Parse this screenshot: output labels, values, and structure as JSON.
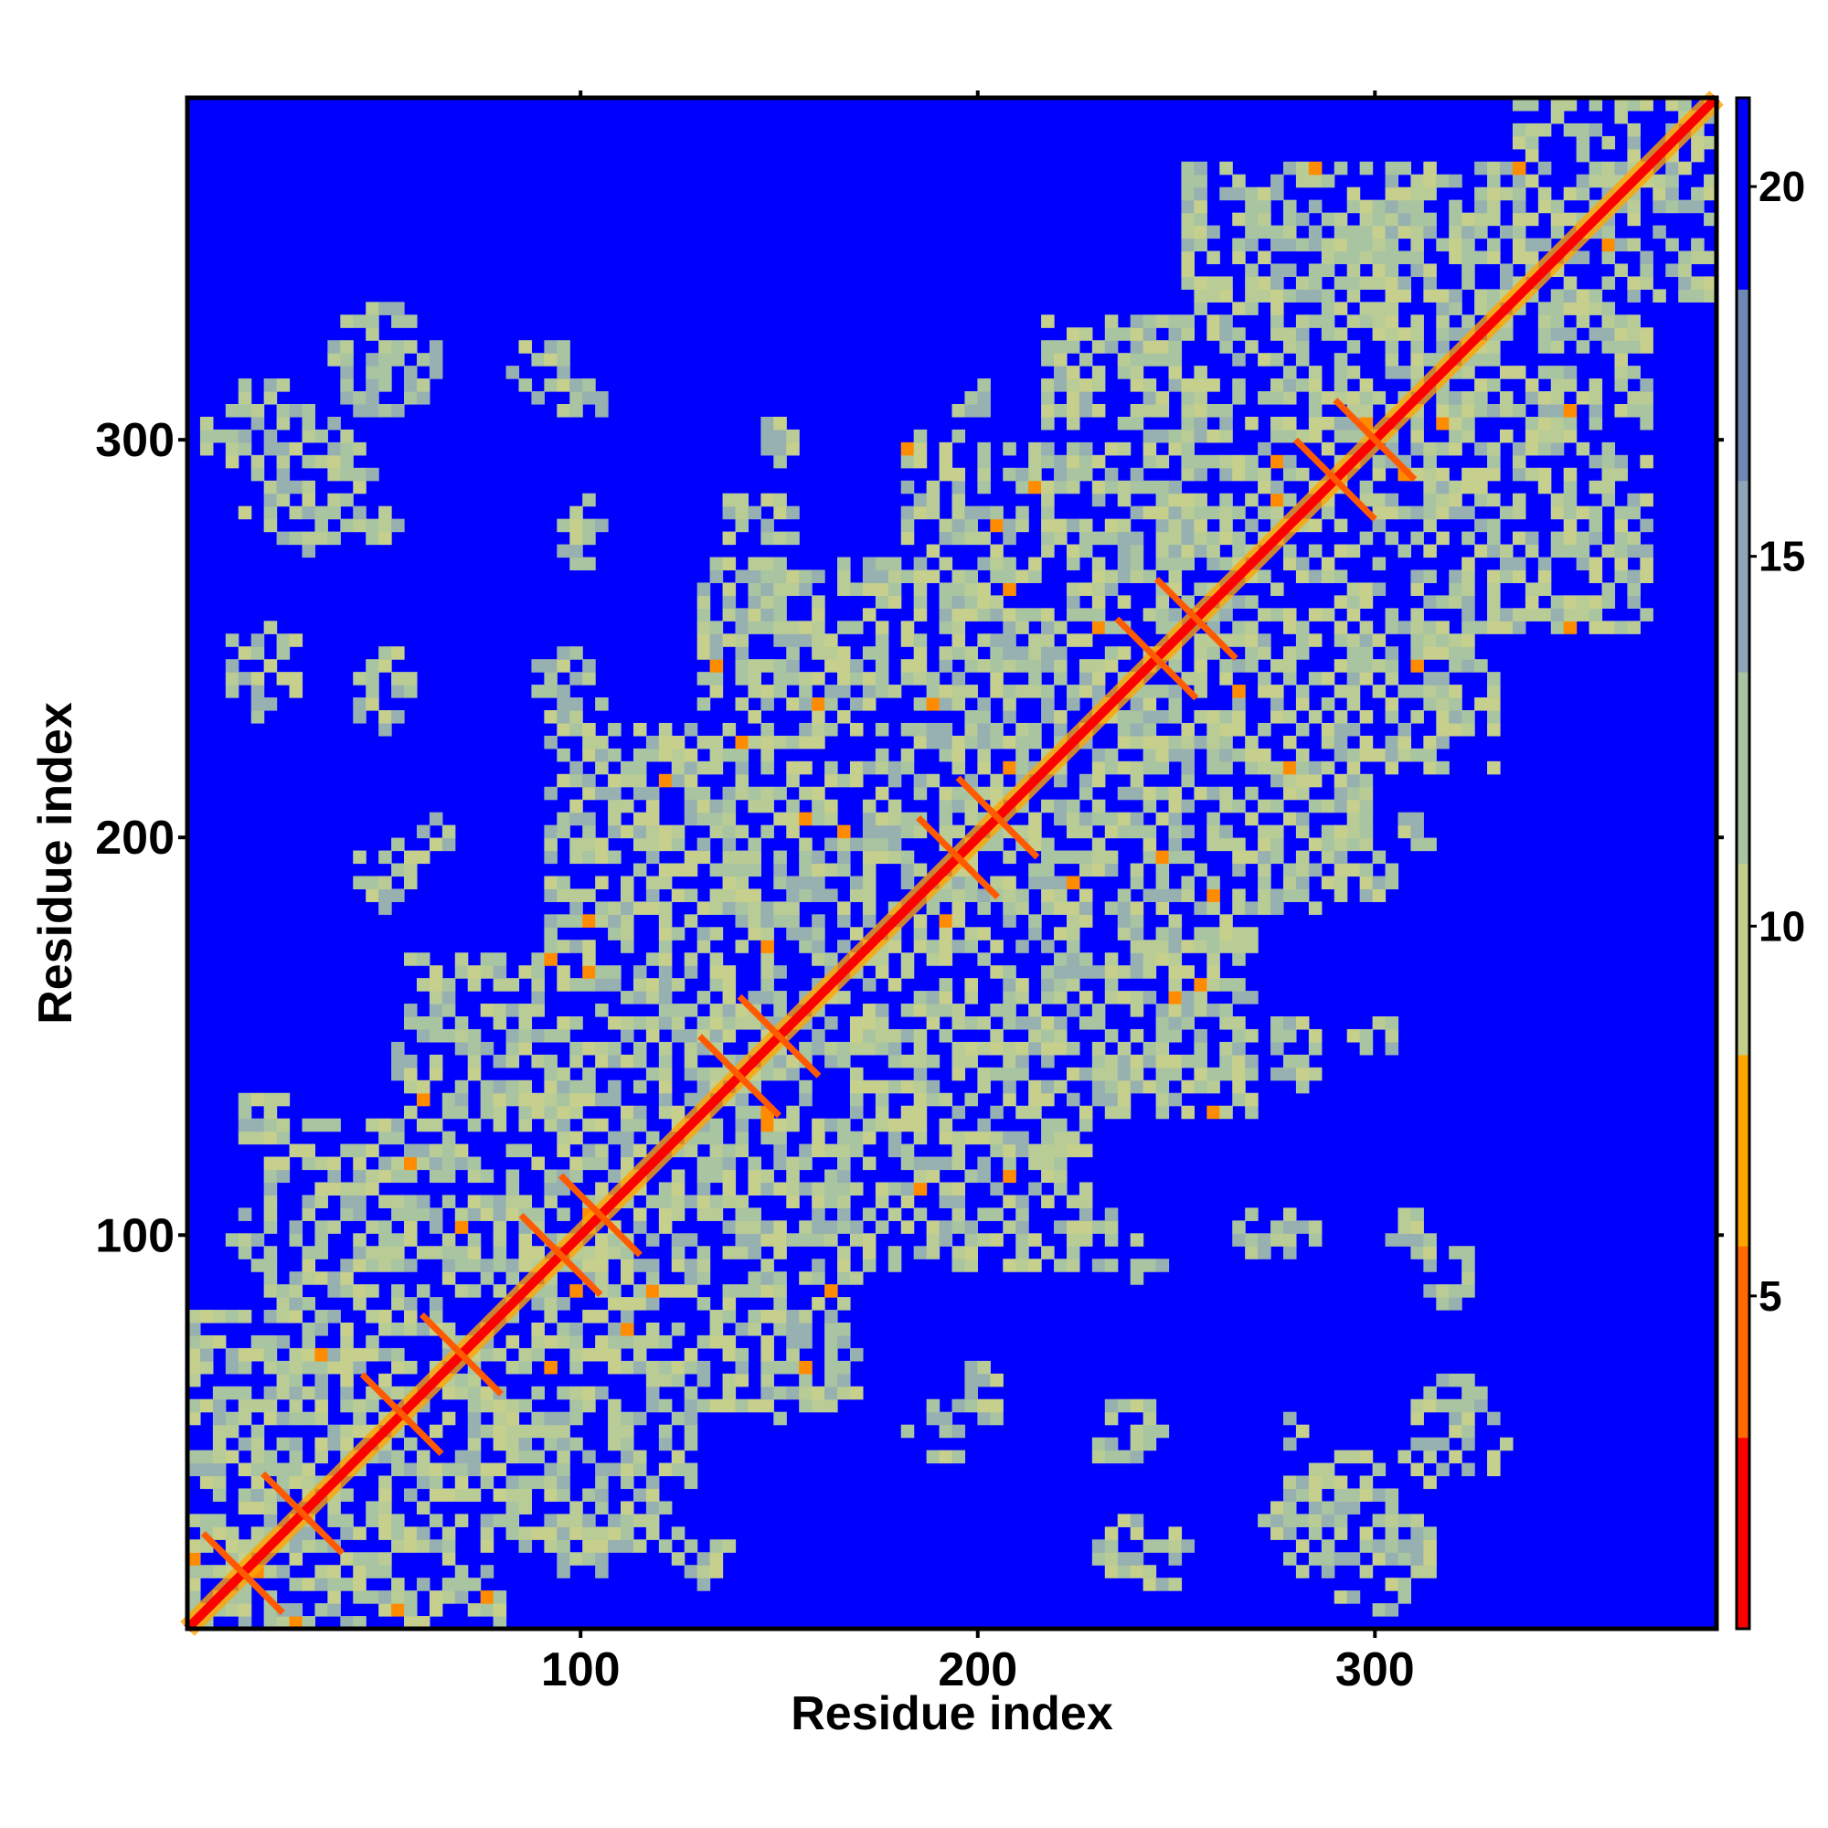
{
  "chart_data": {
    "type": "heatmap",
    "title": "",
    "xlabel": "Residue index",
    "ylabel": "Residue index",
    "xlim": [
      1,
      386
    ],
    "ylim": [
      1,
      386
    ],
    "x_ticks": [
      100,
      200,
      300
    ],
    "x_tick_labels": [
      "100",
      "200",
      "300"
    ],
    "y_ticks": [
      100,
      200,
      300
    ],
    "y_tick_labels": [
      "100",
      "200",
      "300"
    ],
    "grid": false,
    "legend": "none",
    "colorbar": {
      "position": "right",
      "range": [
        0.5,
        21.2
      ],
      "ticks": [
        5,
        10,
        15,
        20
      ],
      "tick_labels": [
        "5",
        "10",
        "15",
        "20"
      ],
      "colors": [
        "#ff0000",
        "#ff6a00",
        "#ffa500",
        "#c2cf8a",
        "#a9c4a0",
        "#8fa6b8",
        "#6f88b4",
        "#0000ff"
      ]
    },
    "description_values": {
      "cell_type": "pairwise residue distance",
      "background_value": 21,
      "diagonal_value": 1
    },
    "diagonal_blocks": [
      [
        1,
        80
      ],
      [
        20,
        130
      ],
      [
        55,
        170
      ],
      [
        90,
        230
      ],
      [
        130,
        270
      ],
      [
        180,
        300
      ],
      [
        215,
        330
      ],
      [
        250,
        370
      ],
      [
        335,
        386
      ]
    ],
    "off_diagonal_patches": [
      [
        20,
        300,
        15
      ],
      [
        50,
        318,
        10
      ],
      [
        90,
        318,
        8
      ],
      [
        20,
        240,
        10
      ],
      [
        50,
        240,
        8
      ],
      [
        95,
        240,
        8
      ],
      [
        140,
        240,
        8
      ],
      [
        60,
        200,
        8
      ],
      [
        100,
        200,
        8
      ],
      [
        150,
        200,
        10
      ],
      [
        190,
        150,
        12
      ],
      [
        220,
        150,
        8
      ],
      [
        255,
        150,
        6
      ],
      [
        280,
        150,
        6
      ],
      [
        300,
        150,
        6
      ],
      [
        190,
        100,
        8
      ],
      [
        230,
        100,
        8
      ],
      [
        270,
        100,
        6
      ],
      [
        310,
        100,
        6
      ],
      [
        290,
        30,
        18
      ],
      [
        320,
        50,
        14
      ],
      [
        245,
        20,
        10
      ],
      [
        130,
        20,
        8
      ],
      [
        100,
        20,
        8
      ],
      [
        190,
        50,
        8
      ],
      [
        235,
        50,
        8
      ],
      [
        270,
        200,
        8
      ],
      [
        310,
        200,
        6
      ],
      [
        340,
        290,
        6
      ],
      [
        290,
        360,
        6
      ],
      [
        255,
        360,
        4
      ],
      [
        140,
        60,
        8
      ],
      [
        150,
        300,
        6
      ],
      [
        190,
        300,
        6
      ],
      [
        220,
        300,
        6
      ],
      [
        100,
        280,
        6
      ],
      [
        50,
        280,
        6
      ],
      [
        140,
        280,
        6
      ],
      [
        250,
        320,
        8
      ],
      [
        80,
        140,
        10
      ],
      [
        60,
        150,
        8
      ]
    ]
  }
}
